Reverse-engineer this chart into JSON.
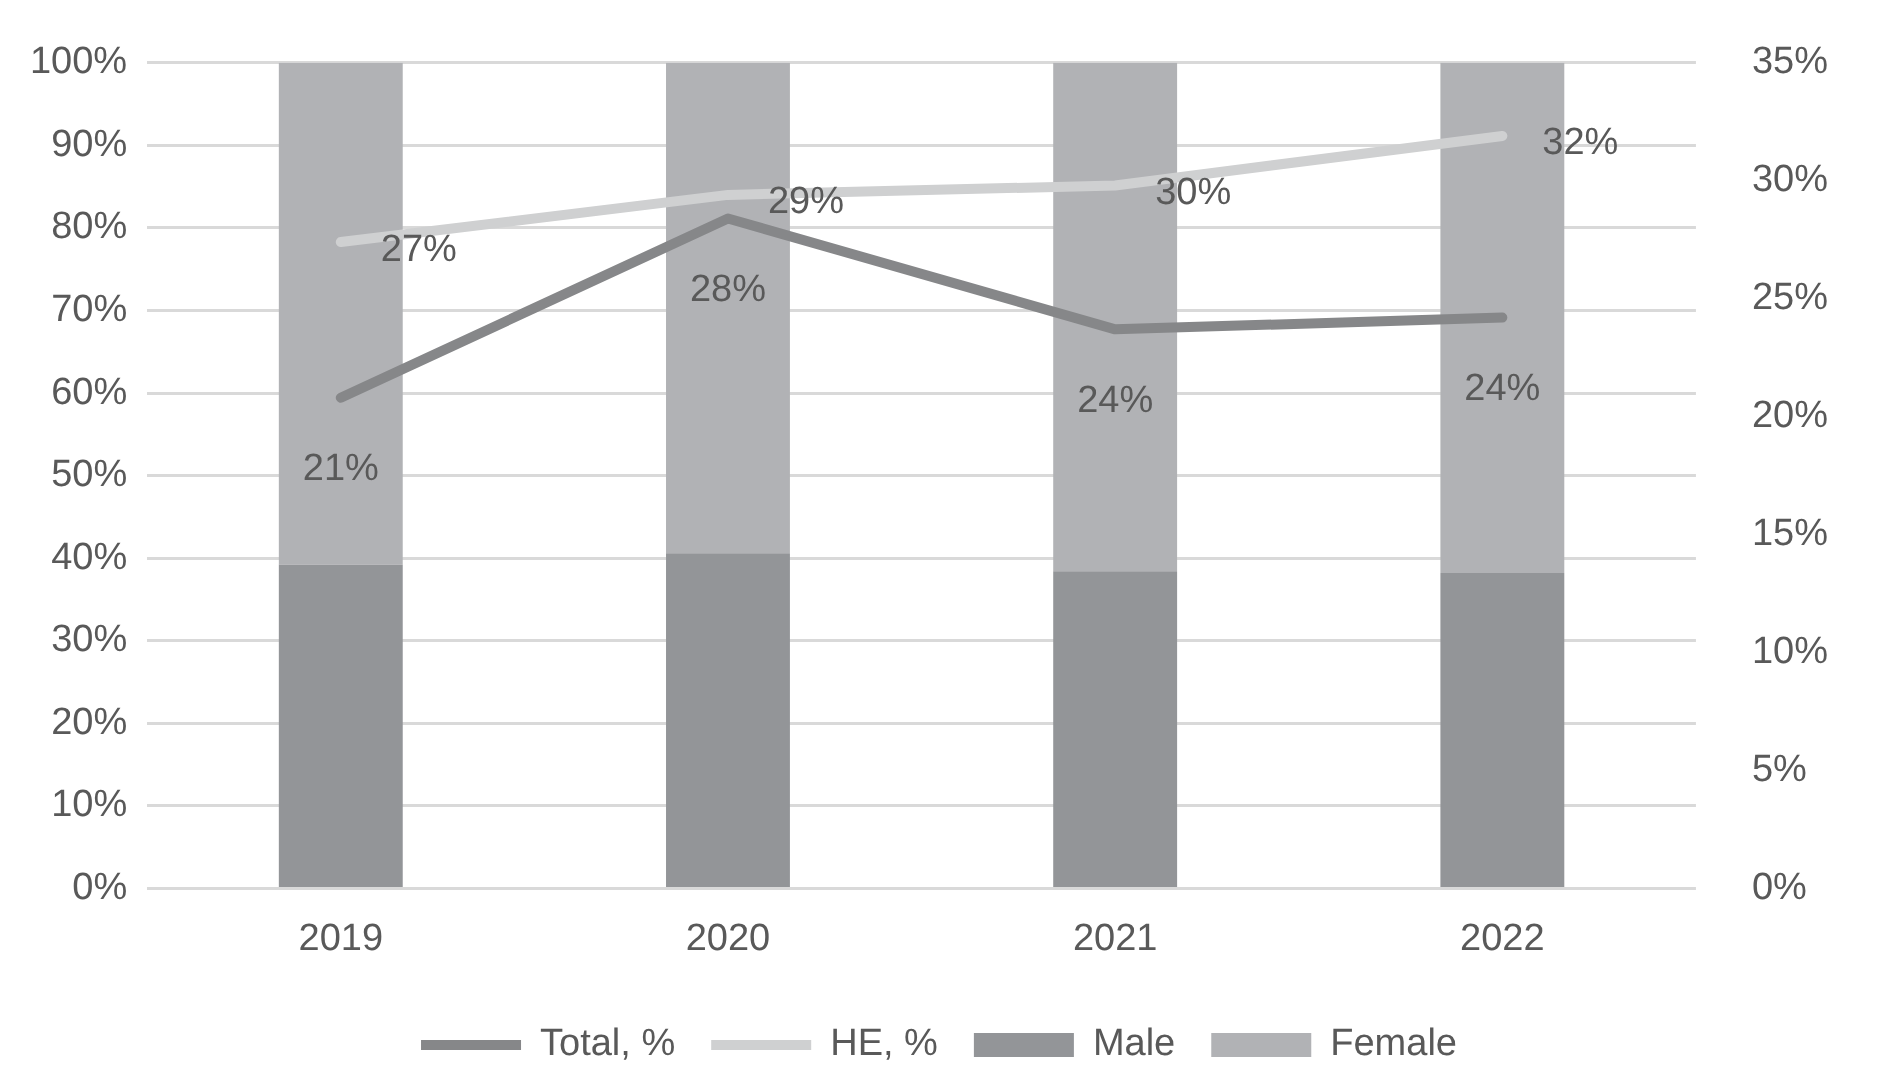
{
  "chart_data": {
    "type": "bar",
    "stacked": true,
    "categories": [
      "2019",
      "2020",
      "2021",
      "2022"
    ],
    "series": [
      {
        "name": "Male",
        "color": "#939598",
        "values": [
          39.2,
          40.6,
          38.4,
          38.2
        ]
      },
      {
        "name": "Female",
        "color": "#b1b2b5",
        "values": [
          60.8,
          59.4,
          61.6,
          61.8
        ]
      },
      {
        "name": "Total, %",
        "type": "line",
        "axis": "y2",
        "color": "#868789",
        "values": [
          20.8,
          28.4,
          23.7,
          24.2
        ],
        "value_labels": [
          "21%",
          "28%",
          "24%",
          "24%"
        ]
      },
      {
        "name": "HE, %",
        "type": "line",
        "axis": "y2",
        "color": "#cfd0d1",
        "values": [
          27.4,
          29.4,
          29.8,
          31.9
        ],
        "value_labels": [
          "27%",
          "29%",
          "30%",
          "32%"
        ]
      }
    ],
    "ylim": [
      0,
      100
    ],
    "yticks": [
      {
        "value": 0,
        "label": "0%"
      },
      {
        "value": 10,
        "label": "10%"
      },
      {
        "value": 20,
        "label": "20%"
      },
      {
        "value": 30,
        "label": "30%"
      },
      {
        "value": 40,
        "label": "40%"
      },
      {
        "value": 50,
        "label": "50%"
      },
      {
        "value": 60,
        "label": "60%"
      },
      {
        "value": 70,
        "label": "70%"
      },
      {
        "value": 80,
        "label": "80%"
      },
      {
        "value": 90,
        "label": "90%"
      },
      {
        "value": 100,
        "label": "100%"
      }
    ],
    "y2lim": [
      0,
      35
    ],
    "y2ticks": [
      {
        "value": 0,
        "label": "0%"
      },
      {
        "value": 5,
        "label": "5%"
      },
      {
        "value": 10,
        "label": "10%"
      },
      {
        "value": 15,
        "label": "15%"
      },
      {
        "value": 20,
        "label": "20%"
      },
      {
        "value": 25,
        "label": "25%"
      },
      {
        "value": 30,
        "label": "30%"
      },
      {
        "value": 35,
        "label": "35%"
      }
    ],
    "grid": "y",
    "legend": "bottom",
    "marker": "none",
    "line_style": "solid"
  }
}
